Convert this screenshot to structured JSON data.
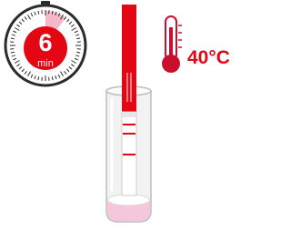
{
  "timer": {
    "value": "6",
    "unit": "min"
  },
  "temperature": "40°C"
}
